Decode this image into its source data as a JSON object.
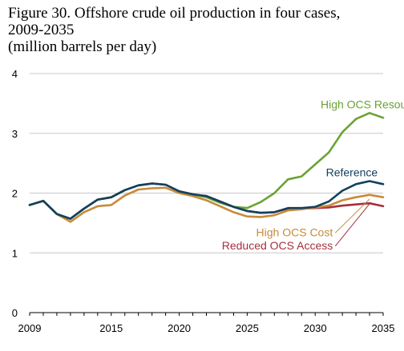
{
  "chart_data": {
    "type": "line",
    "title_lines": [
      "Figure 30. Offshore crude oil production in four cases,",
      "2009-2035",
      "(million barrels per day)"
    ],
    "xlim": [
      2009,
      2035
    ],
    "ylim": [
      0,
      4
    ],
    "x_ticks": [
      2009,
      2015,
      2020,
      2025,
      2030,
      2035
    ],
    "y_ticks": [
      0,
      1,
      2,
      3,
      4
    ],
    "grid": "horizontal",
    "x": [
      2009,
      2010,
      2011,
      2012,
      2013,
      2014,
      2015,
      2016,
      2017,
      2018,
      2019,
      2020,
      2021,
      2022,
      2023,
      2024,
      2025,
      2026,
      2027,
      2028,
      2029,
      2030,
      2031,
      2032,
      2033,
      2034,
      2035
    ],
    "series": [
      {
        "name": "High OCS Resource",
        "color": "#6aa333",
        "values": [
          1.8,
          1.87,
          1.65,
          1.57,
          1.74,
          1.89,
          1.93,
          2.05,
          2.13,
          2.16,
          2.14,
          2.03,
          1.98,
          1.93,
          1.84,
          1.77,
          1.75,
          1.85,
          2.0,
          2.23,
          2.28,
          2.48,
          2.68,
          3.02,
          3.24,
          3.34,
          3.26
        ]
      },
      {
        "name": "Reference",
        "color": "#12405f",
        "values": [
          1.8,
          1.87,
          1.65,
          1.57,
          1.74,
          1.89,
          1.93,
          2.05,
          2.13,
          2.16,
          2.14,
          2.03,
          1.98,
          1.95,
          1.86,
          1.77,
          1.7,
          1.67,
          1.68,
          1.75,
          1.75,
          1.77,
          1.86,
          2.04,
          2.15,
          2.2,
          2.15
        ]
      },
      {
        "name": "High OCS Cost",
        "color": "#c98a3a",
        "values": [
          1.8,
          1.87,
          1.65,
          1.52,
          1.68,
          1.78,
          1.8,
          1.96,
          2.06,
          2.08,
          2.09,
          2.0,
          1.95,
          1.88,
          1.78,
          1.68,
          1.61,
          1.6,
          1.63,
          1.71,
          1.73,
          1.76,
          1.79,
          1.88,
          1.93,
          1.97,
          1.93
        ]
      },
      {
        "name": "Reduced OCS Access",
        "color": "#a5303b",
        "values": [
          1.8,
          1.87,
          1.65,
          1.57,
          1.74,
          1.89,
          1.93,
          2.05,
          2.13,
          2.16,
          2.14,
          2.03,
          1.98,
          1.95,
          1.86,
          1.77,
          1.7,
          1.67,
          1.68,
          1.74,
          1.74,
          1.75,
          1.76,
          1.79,
          1.81,
          1.83,
          1.78
        ]
      }
    ],
    "annotations": [
      {
        "series": 0,
        "text": "High OCS Resource",
        "label_x": 2030.4,
        "label_y": 3.42,
        "anchor": "start"
      },
      {
        "series": 1,
        "text": "Reference",
        "label_x": 2034.6,
        "label_y": 2.28,
        "anchor": "end"
      },
      {
        "series": 2,
        "text": "High OCS Cost",
        "label_x": 2031.3,
        "label_y": 1.28,
        "anchor": "end",
        "leader_to": [
          2034.0,
          1.9
        ]
      },
      {
        "series": 3,
        "text": "Reduced OCS Access",
        "label_x": 2031.3,
        "label_y": 1.06,
        "anchor": "end",
        "leader_to": [
          2034.0,
          1.82
        ]
      }
    ]
  }
}
